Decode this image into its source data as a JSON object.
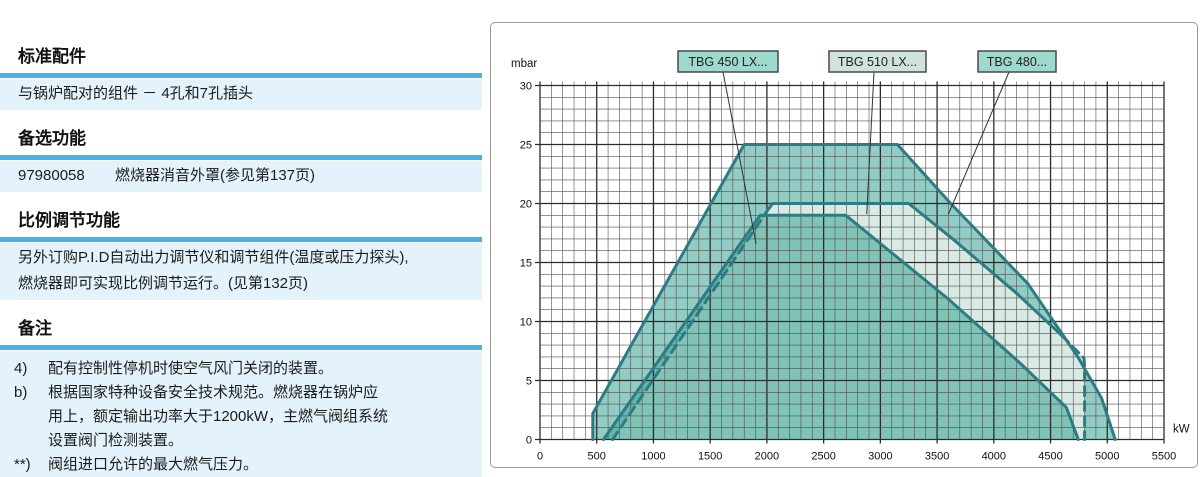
{
  "left_panel": {
    "sections": [
      {
        "heading": "标准配件",
        "lines": [
          [
            "与锅炉配对的组件 － 4孔和7孔插头"
          ]
        ]
      },
      {
        "heading": "备选功能",
        "lines": [
          [
            "97980058",
            "燃烧器消音外罩(参见第137页)"
          ]
        ]
      },
      {
        "heading": "比例调节功能",
        "lines": [
          [
            "另外订购P.I.D自动出力调节仪和调节组件(温度或压力探头),"
          ],
          [
            "燃烧器即可实现比例调节运行。(见第132页)"
          ]
        ]
      },
      {
        "heading": "备注",
        "notes": [
          {
            "marker": "4)",
            "lines": [
              "配有控制性停机时使空气风门关闭的装置。"
            ]
          },
          {
            "marker": "b)",
            "lines": [
              "根据国家特种设备安全技术规范。燃烧器在锅炉应",
              "用上，额定输出功率大于1200kW，主燃气阀组系统",
              "设置阀门检测装置。"
            ]
          },
          {
            "marker": "**)",
            "lines": [
              "阀组进口允许的最大燃气压力。"
            ]
          }
        ]
      }
    ]
  },
  "chart_data": {
    "type": "area",
    "title": "",
    "xlabel": "kW",
    "ylabel": "mbar",
    "xlim": [
      0,
      5500
    ],
    "ylim": [
      0,
      30
    ],
    "x_major_step": 500,
    "x_minor_step": 100,
    "y_major_step": 5,
    "y_minor_step": 1,
    "x_tick_labels": [
      "0",
      "500",
      "1000",
      "1500",
      "2000",
      "2500",
      "3000",
      "3500",
      "4000",
      "4500",
      "5000",
      "5500"
    ],
    "y_tick_labels": [
      "0",
      "5",
      "10",
      "15",
      "20",
      "25",
      "30"
    ],
    "grid": true,
    "legend_position": "top-callouts",
    "series": [
      {
        "name": "outer-envelope-curve",
        "max_pressure_mbar": 25,
        "output_range_kw": [
          465,
          5070
        ],
        "line_style": "solid",
        "fill": "medium-teal",
        "points": [
          [
            465,
            0
          ],
          [
            465,
            2.2
          ],
          [
            1800,
            25
          ],
          [
            3150,
            25
          ],
          [
            3620,
            20
          ],
          [
            4300,
            13.2
          ],
          [
            4740,
            7
          ],
          [
            4950,
            3.5
          ],
          [
            5070,
            0
          ]
        ]
      },
      {
        "name": "middle-curve",
        "max_pressure_mbar": 20,
        "output_range_kw": [
          640,
          4800
        ],
        "line_style": "solid-with-dashed-ends",
        "dashed_ranges": [
          [
            0,
            1
          ],
          [
            6,
            9
          ]
        ],
        "fill": "pale-teal",
        "points": [
          [
            640,
            0
          ],
          [
            1990,
            19.2
          ],
          [
            2050,
            20
          ],
          [
            3250,
            20
          ],
          [
            3650,
            16.9
          ],
          [
            4200,
            12.4
          ],
          [
            4600,
            8.8
          ],
          [
            4795,
            6.9
          ],
          [
            4800,
            6.2
          ],
          [
            4800,
            0
          ]
        ]
      },
      {
        "name": "inner-curve",
        "max_pressure_mbar": 19,
        "output_range_kw": [
          560,
          4745
        ],
        "line_style": "solid",
        "fill": "medium-teal",
        "points": [
          [
            560,
            0
          ],
          [
            1940,
            19
          ],
          [
            2695,
            19
          ],
          [
            3600,
            11.9
          ],
          [
            4240,
            6.4
          ],
          [
            4640,
            2.7
          ],
          [
            4745,
            0
          ]
        ]
      }
    ],
    "callouts": [
      {
        "text": "TBG 450 LX...",
        "tip_kw": 1905,
        "tip_mbar": 16.6,
        "box_fill": "#9fd8cd"
      },
      {
        "text": "TBG 510 LX...",
        "tip_kw": 2880,
        "tip_mbar": 19.1,
        "box_fill": "#cfe2dc"
      },
      {
        "text": "TBG 480...",
        "tip_kw": 3600,
        "tip_mbar": 19.1,
        "box_fill": "#9fd8cd"
      }
    ],
    "colors": {
      "curve_stroke": "#2e7c83",
      "fill_teal": "rgba(59,162,147,0.55)",
      "fill_pale": "#d9eae4",
      "grid_minor": "#4f4f4f",
      "grid_major": "#2c2c2c",
      "accent_blue": "#45b3e5",
      "row_blue": "#e4f2fb",
      "callout_border": "#4a4a4a",
      "leader_line": "#333333"
    }
  }
}
